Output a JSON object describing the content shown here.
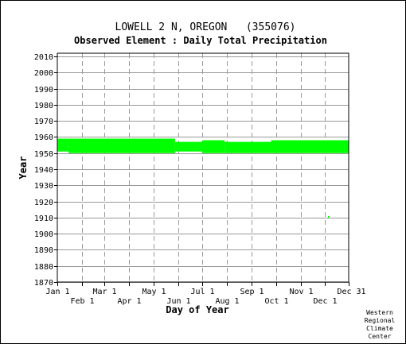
{
  "chart_data": {
    "type": "heatmap",
    "title": "LOWELL 2 N, OREGON   (355076)",
    "subtitle": "Observed Element : Daily Total Precipitation",
    "xlabel": "Day of Year",
    "ylabel": "Year",
    "ylim": [
      1870,
      2012
    ],
    "y_ticks": [
      1870,
      1880,
      1890,
      1900,
      1910,
      1920,
      1930,
      1940,
      1950,
      1960,
      1970,
      1980,
      1990,
      2000,
      2010
    ],
    "x_ticks_upper": [
      {
        "day": 1,
        "label": "Jan 1"
      },
      {
        "day": 60,
        "label": "Mar 1"
      },
      {
        "day": 121,
        "label": "May 1"
      },
      {
        "day": 182,
        "label": "Jul 1"
      },
      {
        "day": 244,
        "label": "Sep 1"
      },
      {
        "day": 305,
        "label": "Nov 1"
      },
      {
        "day": 365,
        "label": "Dec 31"
      }
    ],
    "x_ticks_lower": [
      {
        "day": 32,
        "label": "Feb 1"
      },
      {
        "day": 91,
        "label": "Apr 1"
      },
      {
        "day": 152,
        "label": "Jun 1"
      },
      {
        "day": 213,
        "label": "Aug 1"
      },
      {
        "day": 274,
        "label": "Oct 1"
      },
      {
        "day": 335,
        "label": "Dec 1"
      }
    ],
    "grid": true,
    "data_color": "#00ff00",
    "data_description": "green marks indicate days with observed data",
    "coverage": [
      {
        "start_day": 1,
        "end_day": 15,
        "start_year": 1951,
        "end_year": 1959
      },
      {
        "start_day": 15,
        "end_day": 148,
        "start_year": 1950,
        "end_year": 1959
      },
      {
        "start_day": 148,
        "end_day": 182,
        "start_year": 1951,
        "end_year": 1957
      },
      {
        "start_day": 182,
        "end_day": 210,
        "start_year": 1950,
        "end_year": 1958
      },
      {
        "start_day": 210,
        "end_day": 268,
        "start_year": 1950,
        "end_year": 1957
      },
      {
        "start_day": 268,
        "end_day": 365,
        "start_year": 1950,
        "end_year": 1958
      }
    ],
    "isolated_points": [
      {
        "day": 340,
        "year": 1910.5
      }
    ]
  },
  "credit": {
    "line1": "Western",
    "line2": "Regional",
    "line3": "Climate",
    "line4": "Center"
  }
}
